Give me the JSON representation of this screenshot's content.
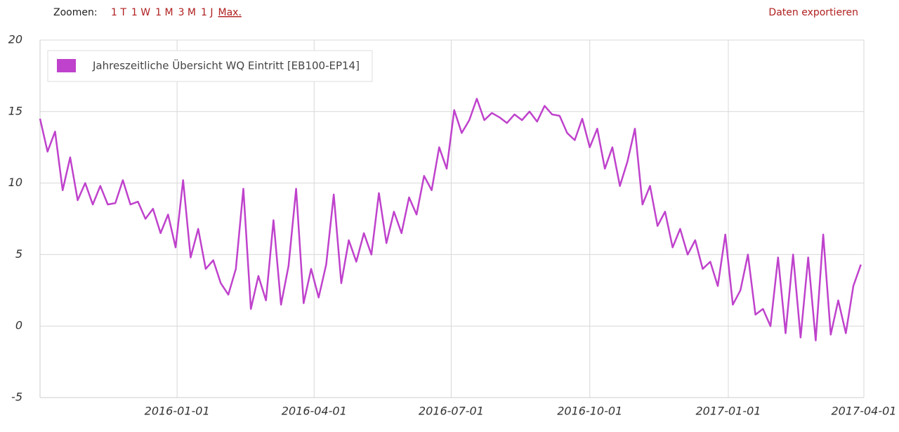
{
  "toolbar": {
    "zoom_label": "Zoomen:",
    "zoom_options": [
      "1 T",
      "1 W",
      "1 M",
      "3 M",
      "1 J",
      "Max."
    ],
    "export": "Daten exportieren"
  },
  "chart_data": {
    "type": "line",
    "grid": true,
    "legend": "top-left",
    "series": [
      {
        "name": "Jahreszeitliche Übersicht WQ Eintritt [EB100-EP14]",
        "color": "#bf42cc",
        "x": [
          "2015-10-02",
          "2015-10-07",
          "2015-10-12",
          "2015-10-17",
          "2015-10-22",
          "2015-10-27",
          "2015-11-01",
          "2015-11-06",
          "2015-11-11",
          "2015-11-16",
          "2015-11-21",
          "2015-11-26",
          "2015-12-01",
          "2015-12-06",
          "2015-12-11",
          "2015-12-16",
          "2015-12-21",
          "2015-12-26",
          "2015-12-31",
          "2016-01-05",
          "2016-01-10",
          "2016-01-15",
          "2016-01-20",
          "2016-01-25",
          "2016-01-30",
          "2016-02-04",
          "2016-02-09",
          "2016-02-14",
          "2016-02-19",
          "2016-02-24",
          "2016-02-29",
          "2016-03-05",
          "2016-03-10",
          "2016-03-15",
          "2016-03-20",
          "2016-03-25",
          "2016-03-30",
          "2016-04-04",
          "2016-04-09",
          "2016-04-14",
          "2016-04-19",
          "2016-04-24",
          "2016-04-29",
          "2016-05-04",
          "2016-05-09",
          "2016-05-14",
          "2016-05-19",
          "2016-05-24",
          "2016-05-29",
          "2016-06-03",
          "2016-06-08",
          "2016-06-13",
          "2016-06-18",
          "2016-06-23",
          "2016-06-28",
          "2016-07-03",
          "2016-07-08",
          "2016-07-13",
          "2016-07-18",
          "2016-07-23",
          "2016-07-28",
          "2016-08-02",
          "2016-08-07",
          "2016-08-12",
          "2016-08-17",
          "2016-08-22",
          "2016-08-27",
          "2016-09-01",
          "2016-09-06",
          "2016-09-11",
          "2016-09-16",
          "2016-09-21",
          "2016-09-26",
          "2016-10-01",
          "2016-10-06",
          "2016-10-11",
          "2016-10-16",
          "2016-10-21",
          "2016-10-26",
          "2016-10-31",
          "2016-11-05",
          "2016-11-10",
          "2016-11-15",
          "2016-11-20",
          "2016-11-25",
          "2016-11-30",
          "2016-12-05",
          "2016-12-10",
          "2016-12-15",
          "2016-12-20",
          "2016-12-25",
          "2016-12-30",
          "2017-01-04",
          "2017-01-09",
          "2017-01-14",
          "2017-01-19",
          "2017-01-24",
          "2017-01-29",
          "2017-02-03",
          "2017-02-08",
          "2017-02-13",
          "2017-02-18",
          "2017-02-23",
          "2017-02-28",
          "2017-03-05",
          "2017-03-10",
          "2017-03-15",
          "2017-03-20",
          "2017-03-25",
          "2017-03-30"
        ],
        "values": [
          14.5,
          12.2,
          13.6,
          9.5,
          11.8,
          8.8,
          10.0,
          8.5,
          9.8,
          8.5,
          8.6,
          10.2,
          8.5,
          8.7,
          7.5,
          8.2,
          6.5,
          7.8,
          5.5,
          10.2,
          4.8,
          6.8,
          4.0,
          4.6,
          3.0,
          2.2,
          4.0,
          9.6,
          1.2,
          3.5,
          1.8,
          7.4,
          1.5,
          4.2,
          9.6,
          1.6,
          4.0,
          2.0,
          4.3,
          9.2,
          3.0,
          6.0,
          4.5,
          6.5,
          5.0,
          9.3,
          5.8,
          8.0,
          6.5,
          9.0,
          7.8,
          10.5,
          9.5,
          12.5,
          11.0,
          15.1,
          13.5,
          14.4,
          15.9,
          14.4,
          14.9,
          14.6,
          14.2,
          14.8,
          14.4,
          15.0,
          14.3,
          15.4,
          14.8,
          14.7,
          13.5,
          13.0,
          14.5,
          12.5,
          13.8,
          11.0,
          12.5,
          9.8,
          11.5,
          13.8,
          8.5,
          9.8,
          7.0,
          8.0,
          5.5,
          6.8,
          5.0,
          6.0,
          4.0,
          4.5,
          2.8,
          6.4,
          1.5,
          2.5,
          5.0,
          0.8,
          1.2,
          0.0,
          4.8,
          -0.5,
          5.0,
          -0.8,
          4.8,
          -1.0,
          6.4,
          -0.6,
          1.8,
          -0.5,
          2.8,
          4.3
        ]
      }
    ],
    "xlim": [
      "2015-10-02",
      "2017-04-01"
    ],
    "xticks": [
      "2016-01-01",
      "2016-04-01",
      "2016-07-01",
      "2016-10-01",
      "2017-01-01",
      "2017-04-01"
    ],
    "ylim": [
      -5,
      20
    ],
    "yticks": [
      -5,
      0,
      5,
      10,
      15,
      20
    ]
  }
}
